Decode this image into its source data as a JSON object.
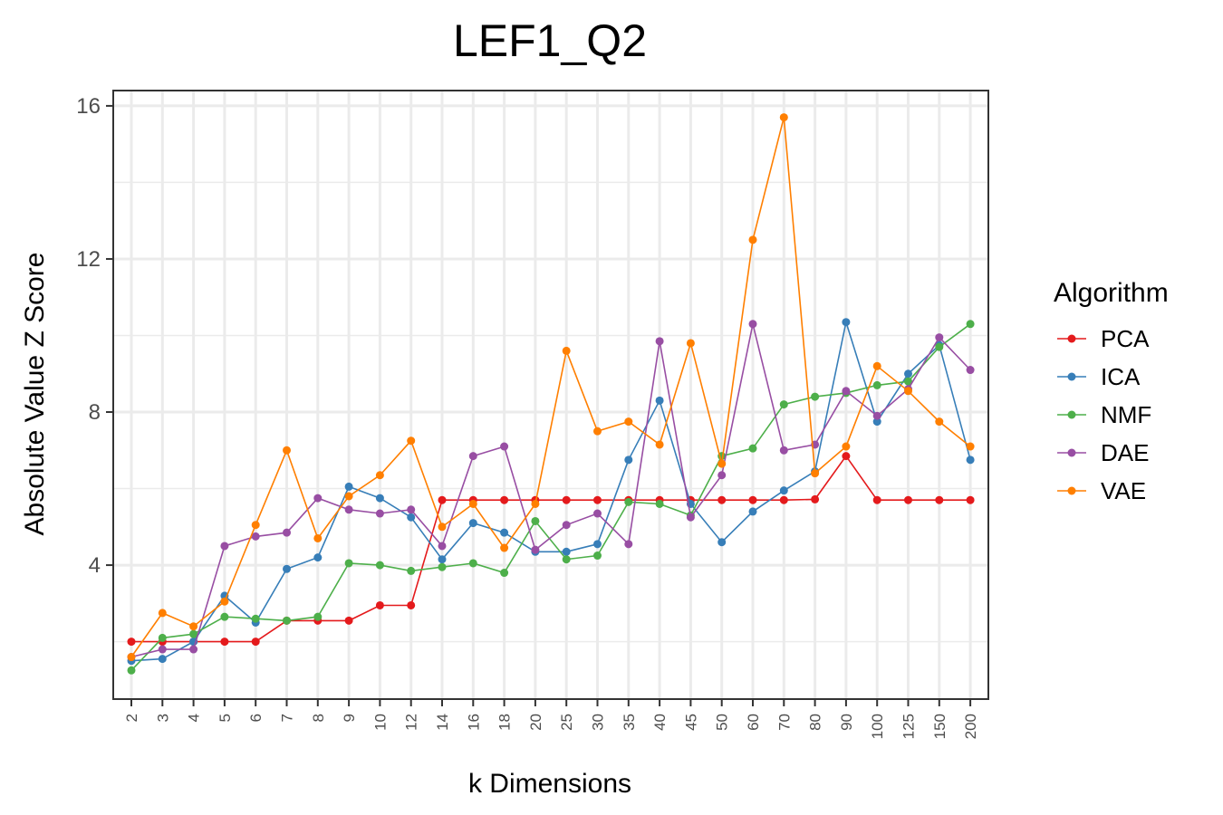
{
  "chart_data": {
    "type": "line",
    "title": "LEF1_Q2",
    "xlabel": "k Dimensions",
    "ylabel": "Absolute Value Z Score",
    "categories": [
      "2",
      "3",
      "4",
      "5",
      "6",
      "7",
      "8",
      "9",
      "10",
      "12",
      "14",
      "16",
      "18",
      "20",
      "25",
      "30",
      "35",
      "40",
      "45",
      "50",
      "60",
      "70",
      "80",
      "90",
      "100",
      "125",
      "150",
      "200"
    ],
    "ylim": [
      0.5,
      16.4
    ],
    "yticks": [
      4,
      8,
      12,
      16
    ],
    "grid": true,
    "legend_title": "Algorithm",
    "legend_position": "right",
    "series": [
      {
        "name": "PCA",
        "color": "#e41a1c",
        "values": [
          2.0,
          2.0,
          2.0,
          2.0,
          2.0,
          2.55,
          2.55,
          2.55,
          2.95,
          2.95,
          5.7,
          5.7,
          5.7,
          5.7,
          5.7,
          5.7,
          5.7,
          5.7,
          5.7,
          5.7,
          5.7,
          5.7,
          5.72,
          6.85,
          5.7,
          5.7,
          5.7,
          5.7
        ]
      },
      {
        "name": "ICA",
        "color": "#377eb8",
        "values": [
          1.5,
          1.55,
          2.0,
          3.2,
          2.5,
          3.9,
          4.2,
          6.05,
          5.75,
          5.25,
          4.15,
          5.1,
          4.85,
          4.35,
          4.35,
          4.55,
          6.75,
          8.3,
          5.6,
          4.6,
          5.4,
          5.95,
          6.45,
          10.35,
          7.75,
          9.0,
          9.75,
          6.75
        ]
      },
      {
        "name": "NMF",
        "color": "#4daf4a",
        "values": [
          1.25,
          2.1,
          2.2,
          2.65,
          2.6,
          2.55,
          2.65,
          4.05,
          4.0,
          3.85,
          3.95,
          4.05,
          3.8,
          5.15,
          4.15,
          4.25,
          5.65,
          5.6,
          5.3,
          6.85,
          7.05,
          8.2,
          8.4,
          8.5,
          8.7,
          8.8,
          9.7,
          10.3
        ]
      },
      {
        "name": "DAE",
        "color": "#984ea3",
        "values": [
          1.6,
          1.8,
          1.8,
          4.5,
          4.75,
          4.85,
          5.75,
          5.45,
          5.35,
          5.45,
          4.5,
          6.85,
          7.1,
          4.4,
          5.05,
          5.35,
          4.55,
          9.85,
          5.25,
          6.35,
          10.3,
          7.0,
          7.15,
          8.55,
          7.9,
          8.6,
          9.95,
          9.1
        ]
      },
      {
        "name": "VAE",
        "color": "#ff7f00",
        "values": [
          1.6,
          2.75,
          2.4,
          3.05,
          5.05,
          7.0,
          4.7,
          5.8,
          6.35,
          7.25,
          5.0,
          5.6,
          4.45,
          5.6,
          9.6,
          7.5,
          7.75,
          7.15,
          9.8,
          6.65,
          12.5,
          15.7,
          6.4,
          7.1,
          9.2,
          8.55,
          7.75,
          7.1
        ]
      }
    ]
  }
}
